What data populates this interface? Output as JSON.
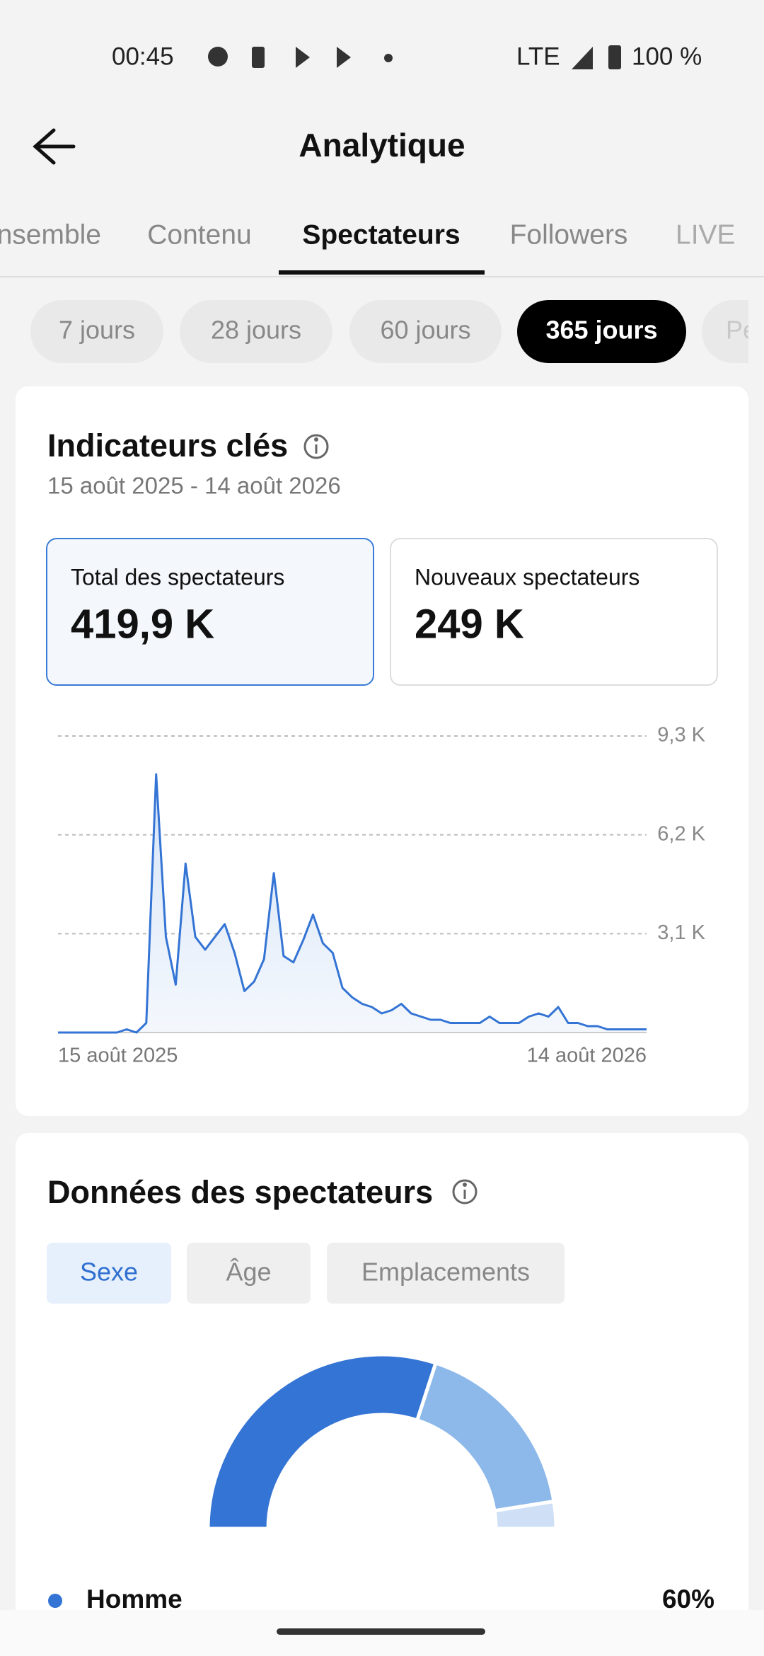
{
  "status_bar": {
    "time": "00:45",
    "network": "LTE",
    "battery": "100 %"
  },
  "header": {
    "title": "Analytique"
  },
  "tabs": [
    "Ensemble",
    "Contenu",
    "Spectateurs",
    "Followers",
    "LIVE"
  ],
  "periods": [
    "7 jours",
    "28 jours",
    "60 jours",
    "365 jours",
    "Pe"
  ],
  "key_metrics": {
    "title": "Indicateurs clés",
    "date_range": "15 août 2025 - 14 août 2026",
    "cards": [
      {
        "label": "Total des spectateurs",
        "value": "419,9 K"
      },
      {
        "label": "Nouveaux spectateurs",
        "value": "249 K"
      }
    ]
  },
  "audience": {
    "title": "Données des spectateurs",
    "filters": [
      "Sexe",
      "Âge",
      "Emplacements"
    ]
  },
  "chart_data": [
    {
      "type": "line",
      "color": "#3474d4",
      "grid": true,
      "categories": [
        "15 août 2025",
        null,
        null,
        null,
        null,
        null,
        null,
        null,
        null,
        null,
        null,
        null,
        null,
        null,
        null,
        null,
        null,
        null,
        null,
        null,
        null,
        null,
        null,
        null,
        null,
        null,
        null,
        null,
        null,
        null,
        null,
        null,
        null,
        null,
        null,
        null,
        null,
        null,
        null,
        null,
        null,
        null,
        null,
        null,
        null,
        null,
        null,
        null,
        null,
        null,
        null,
        null,
        null,
        null,
        null,
        null,
        null,
        null,
        null,
        null,
        "14 août 2026"
      ],
      "values": [
        0,
        0,
        0,
        0,
        0,
        0,
        0,
        0.1,
        0,
        0.3,
        8.1,
        3.0,
        1.5,
        5.3,
        3.0,
        2.6,
        3.0,
        3.4,
        2.5,
        1.3,
        1.6,
        2.3,
        5.0,
        2.4,
        2.2,
        2.9,
        3.7,
        2.8,
        2.5,
        1.4,
        1.1,
        0.9,
        0.8,
        0.6,
        0.7,
        0.9,
        0.6,
        0.5,
        0.4,
        0.4,
        0.3,
        0.3,
        0.3,
        0.3,
        0.5,
        0.3,
        0.3,
        0.3,
        0.5,
        0.6,
        0.5,
        0.8,
        0.3,
        0.3,
        0.2,
        0.2,
        0.1,
        0.1,
        0.1,
        0.1,
        0.1
      ],
      "ylim": [
        0,
        9.3
      ],
      "yticks": [
        {
          "value": 3.1,
          "label": "3,1 K"
        },
        {
          "value": 6.2,
          "label": "6,2 K"
        },
        {
          "value": 9.3,
          "label": "9,3 K"
        }
      ]
    },
    {
      "type": "pie",
      "categories": [
        "Homme",
        null,
        null
      ],
      "values": [
        60,
        35,
        5
      ],
      "value_labels": [
        "60%",
        null,
        null
      ],
      "colors": [
        "#3474d4",
        "#8db8ea",
        "#cfe0f6"
      ]
    }
  ]
}
